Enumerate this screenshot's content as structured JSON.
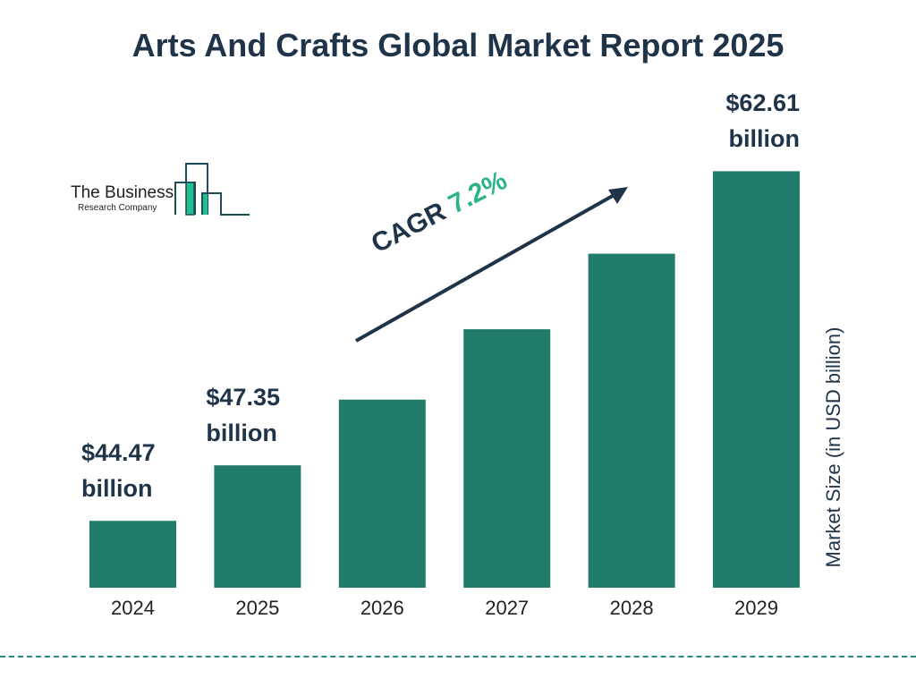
{
  "chart_data": {
    "type": "bar",
    "title": "Arts And Crafts Global Market Report 2025",
    "categories": [
      "2024",
      "2025",
      "2026",
      "2027",
      "2028",
      "2029"
    ],
    "values": [
      44.47,
      47.35,
      50.76,
      54.41,
      58.33,
      62.61
    ],
    "data_labels": [
      {
        "index": 0,
        "value": "$44.47",
        "unit": "billion"
      },
      {
        "index": 1,
        "value": "$47.35",
        "unit": "billion"
      },
      {
        "index": 5,
        "value": "$62.61",
        "unit": "billion"
      }
    ],
    "ylabel": "Market Size (in USD billion)",
    "xlabel": "",
    "ylim": [
      41,
      63
    ],
    "grid": false,
    "bar_color": "#217c6b",
    "annotation": {
      "label": "CAGR",
      "value": "7.2%",
      "label_color": "#1f3349",
      "value_color": "#2bb48a"
    }
  },
  "logo": {
    "line1": "The Business",
    "line2": "Research Company",
    "accent": "#1fbf8f",
    "outline": "#1f4a5a"
  }
}
